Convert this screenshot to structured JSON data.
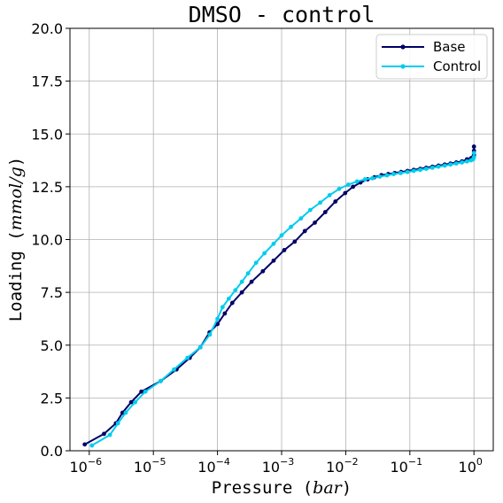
{
  "chart_data": {
    "type": "line",
    "title": "DMSO - control",
    "xlabel_prefix": "Pressure (",
    "xlabel_unit": "bar",
    "xlabel_suffix": ")",
    "ylabel_prefix": "Loading (",
    "ylabel_unit": "mmol/g",
    "ylabel_suffix": ")",
    "xscale": "log",
    "xlim": [
      5e-07,
      2
    ],
    "ylim": [
      0,
      20
    ],
    "x_ticks": [
      {
        "value": 1e-06,
        "exp": "−6"
      },
      {
        "value": 1e-05,
        "exp": "−5"
      },
      {
        "value": 0.0001,
        "exp": "−4"
      },
      {
        "value": 0.001,
        "exp": "−3"
      },
      {
        "value": 0.01,
        "exp": "−2"
      },
      {
        "value": 0.1,
        "exp": "−1"
      },
      {
        "value": 1,
        "exp": "0"
      }
    ],
    "y_ticks": [
      {
        "value": 0,
        "label": "0.0"
      },
      {
        "value": 2.5,
        "label": "2.5"
      },
      {
        "value": 5,
        "label": "5.0"
      },
      {
        "value": 7.5,
        "label": "7.5"
      },
      {
        "value": 10,
        "label": "10.0"
      },
      {
        "value": 12.5,
        "label": "12.5"
      },
      {
        "value": 15,
        "label": "15.0"
      },
      {
        "value": 17.5,
        "label": "17.5"
      },
      {
        "value": 20,
        "label": "20.0"
      }
    ],
    "grid": true,
    "legend_position": "top-right",
    "series": [
      {
        "name": "Base",
        "color": "#000066",
        "x": [
          8.5e-07,
          1.7e-06,
          2.6e-06,
          3.3e-06,
          4.5e-06,
          6.5e-06,
          1.3e-05,
          2.3e-05,
          3.7e-05,
          5.4e-05,
          7.5e-05,
          0.0001,
          0.00013,
          0.00017,
          0.00024,
          0.00034,
          0.00051,
          0.00075,
          0.0011,
          0.0016,
          0.0023,
          0.0033,
          0.0048,
          0.0069,
          0.0098,
          0.013,
          0.017,
          0.022,
          0.028,
          0.036,
          0.046,
          0.058,
          0.073,
          0.092,
          0.115,
          0.145,
          0.18,
          0.225,
          0.28,
          0.35,
          0.43,
          0.53,
          0.65,
          0.78,
          0.9,
          0.97,
          1.0,
          1.0,
          1.0
        ],
        "y": [
          0.3,
          0.8,
          1.3,
          1.8,
          2.3,
          2.8,
          3.3,
          3.85,
          4.4,
          4.9,
          5.6,
          6.0,
          6.5,
          7.0,
          7.5,
          8.0,
          8.5,
          9.0,
          9.5,
          9.9,
          10.4,
          10.8,
          11.3,
          11.8,
          12.2,
          12.5,
          12.7,
          12.85,
          12.95,
          13.05,
          13.1,
          13.15,
          13.2,
          13.25,
          13.3,
          13.35,
          13.4,
          13.45,
          13.5,
          13.55,
          13.6,
          13.65,
          13.7,
          13.8,
          13.85,
          13.9,
          14.0,
          14.2,
          14.4
        ]
      },
      {
        "name": "Control",
        "color": "#00ccee",
        "x": [
          1.1e-06,
          2.1e-06,
          2.8e-06,
          3.7e-06,
          5.2e-06,
          7.5e-06,
          1.3e-05,
          2.1e-05,
          3.4e-05,
          5.4e-05,
          7.6e-05,
          0.0001,
          0.00012,
          0.00015,
          0.00019,
          0.00024,
          0.0003,
          0.0004,
          0.00054,
          0.00075,
          0.001,
          0.0014,
          0.002,
          0.0028,
          0.004,
          0.0056,
          0.0079,
          0.011,
          0.015,
          0.02,
          0.026,
          0.034,
          0.044,
          0.056,
          0.072,
          0.092,
          0.115,
          0.145,
          0.18,
          0.225,
          0.28,
          0.35,
          0.43,
          0.53,
          0.65,
          0.78,
          0.9,
          0.97,
          1.0,
          1.0
        ],
        "y": [
          0.25,
          0.75,
          1.3,
          1.8,
          2.3,
          2.8,
          3.3,
          3.85,
          4.4,
          4.9,
          5.5,
          6.25,
          6.8,
          7.2,
          7.6,
          8.0,
          8.4,
          8.9,
          9.35,
          9.8,
          10.2,
          10.6,
          11.0,
          11.4,
          11.75,
          12.1,
          12.4,
          12.6,
          12.75,
          12.85,
          12.9,
          12.98,
          13.04,
          13.1,
          13.15,
          13.2,
          13.25,
          13.3,
          13.35,
          13.4,
          13.45,
          13.5,
          13.55,
          13.6,
          13.65,
          13.7,
          13.75,
          13.8,
          13.9,
          14.1
        ]
      }
    ]
  }
}
